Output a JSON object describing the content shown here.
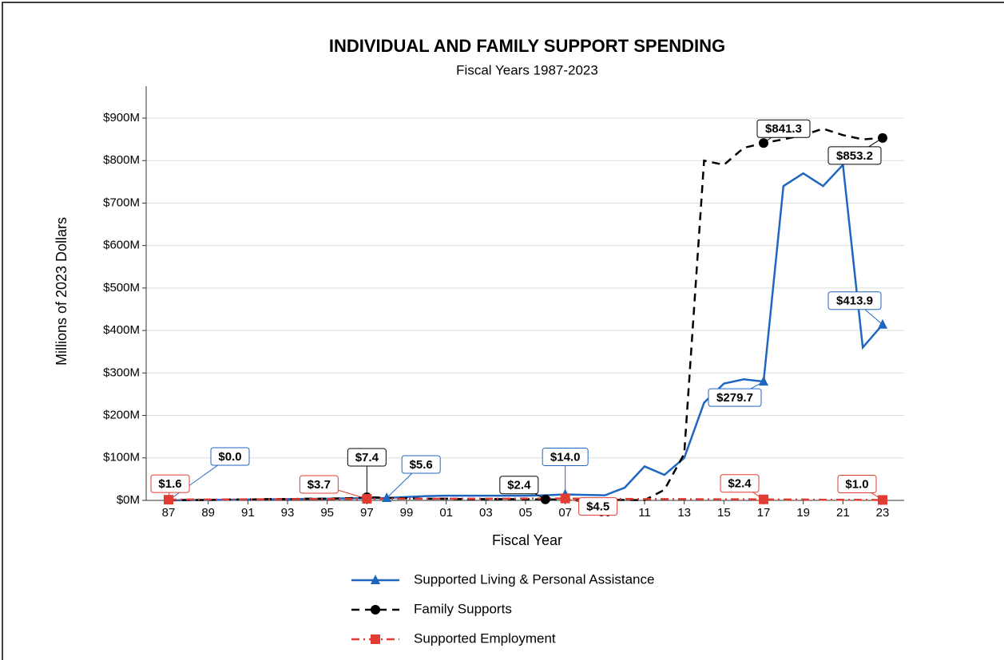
{
  "chart_data": {
    "type": "line",
    "title": "INDIVIDUAL AND FAMILY SUPPORT SPENDING",
    "subtitle": "Fiscal Years 1987-2023",
    "x_label": "Fiscal Year",
    "y_label": "Millions of 2023 Dollars",
    "categories": [
      "87",
      null,
      "89",
      null,
      "91",
      null,
      "93",
      null,
      "95",
      null,
      "97",
      null,
      "99",
      null,
      "01",
      null,
      "03",
      null,
      "05",
      null,
      "07",
      null,
      "09",
      null,
      "11",
      null,
      "13",
      null,
      "15",
      null,
      "17",
      null,
      "19",
      null,
      "21",
      null,
      "23"
    ],
    "ylim": [
      0,
      900
    ],
    "yticks": [
      {
        "value": 0,
        "label": "$0M"
      },
      {
        "value": 100,
        "label": "$100M"
      },
      {
        "value": 200,
        "label": "$200M"
      },
      {
        "value": 300,
        "label": "$300M"
      },
      {
        "value": 400,
        "label": "$400M"
      },
      {
        "value": 500,
        "label": "$500M"
      },
      {
        "value": 600,
        "label": "$600M"
      },
      {
        "value": 700,
        "label": "$700M"
      },
      {
        "value": 800,
        "label": "$800M"
      },
      {
        "value": 900,
        "label": "$900M"
      }
    ],
    "grid": true,
    "series": [
      {
        "name": "Supported Living & Personal Assistance",
        "color": "#1f66c1",
        "dash": "solid",
        "marker": "triangle",
        "values": [
          0.0,
          0.5,
          1,
          1.5,
          2,
          2.5,
          3,
          3.5,
          4,
          5,
          5.2,
          5.6,
          8,
          10,
          11,
          11,
          11,
          11,
          11,
          12,
          14,
          13,
          12,
          30,
          80,
          60,
          100,
          230,
          275,
          285,
          279.7,
          740,
          770,
          740,
          790,
          360,
          413.9
        ],
        "value_labels": [
          "$0.0",
          null,
          null,
          null,
          null,
          null,
          null,
          null,
          null,
          null,
          null,
          "$5.6",
          null,
          null,
          null,
          null,
          null,
          null,
          null,
          null,
          "$14.0",
          null,
          null,
          null,
          null,
          null,
          null,
          null,
          null,
          null,
          "$279.7",
          null,
          null,
          null,
          null,
          null,
          "$413.9"
        ]
      },
      {
        "name": "Family Supports",
        "color": "#000000",
        "dash": "dashed",
        "marker": "circle",
        "values": [
          1,
          1,
          1,
          2,
          2,
          3,
          3,
          4,
          4,
          5,
          7.4,
          6,
          5,
          4,
          4,
          3,
          3,
          3,
          2.5,
          2.4,
          2,
          2,
          1.5,
          1,
          0.5,
          25,
          110,
          800,
          790,
          830,
          841.3,
          850,
          860,
          875,
          860,
          850,
          853.2
        ],
        "value_labels": [
          null,
          null,
          null,
          null,
          null,
          null,
          null,
          null,
          null,
          null,
          "$7.4",
          null,
          null,
          null,
          null,
          null,
          null,
          null,
          null,
          "$2.4",
          null,
          null,
          null,
          null,
          null,
          null,
          null,
          null,
          null,
          null,
          "$841.3",
          null,
          null,
          null,
          null,
          null,
          "$853.2"
        ]
      },
      {
        "name": "Supported Employment",
        "color": "#e03c31",
        "dash": "dashdot",
        "marker": "square",
        "values": [
          1.6,
          2,
          2,
          2,
          2.5,
          2.5,
          3,
          3,
          3,
          3.5,
          3.7,
          4,
          4,
          4,
          4,
          4,
          4,
          4,
          4.5,
          4.5,
          4.5,
          4,
          4,
          3.5,
          3,
          3,
          3,
          2.5,
          2.5,
          2.5,
          2.4,
          2,
          2,
          1.5,
          1.5,
          1.2,
          1.0
        ],
        "value_labels": [
          "$1.6",
          null,
          null,
          null,
          null,
          null,
          null,
          null,
          null,
          null,
          "$3.7",
          null,
          null,
          null,
          null,
          null,
          null,
          null,
          null,
          null,
          "$4.5",
          null,
          null,
          null,
          null,
          null,
          null,
          null,
          null,
          null,
          "$2.4",
          null,
          null,
          null,
          null,
          null,
          "$1.0"
        ]
      }
    ]
  }
}
